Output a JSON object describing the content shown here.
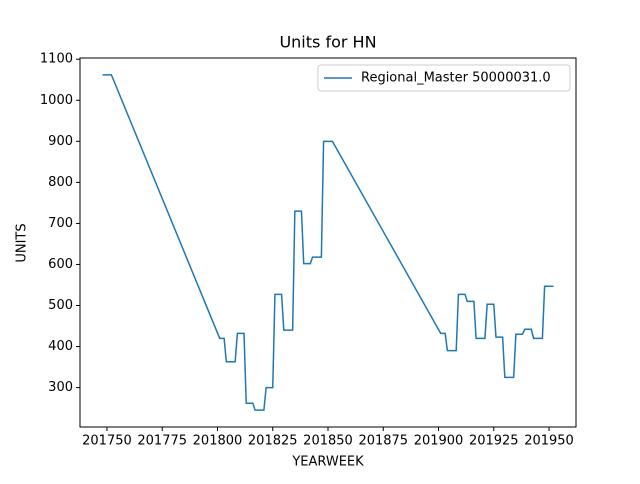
{
  "chart_data": {
    "type": "line",
    "title": "Units for HN",
    "x_label": "YEARWEEK",
    "y_label": "UNITS",
    "x": [
      201748,
      201749,
      201750,
      201751,
      201752,
      201801,
      201802,
      201803,
      201804,
      201805,
      201806,
      201807,
      201808,
      201809,
      201810,
      201811,
      201812,
      201813,
      201814,
      201815,
      201816,
      201817,
      201818,
      201819,
      201820,
      201821,
      201822,
      201823,
      201824,
      201825,
      201826,
      201827,
      201828,
      201829,
      201830,
      201831,
      201832,
      201833,
      201834,
      201835,
      201836,
      201837,
      201838,
      201839,
      201840,
      201841,
      201842,
      201843,
      201844,
      201845,
      201846,
      201847,
      201848,
      201849,
      201850,
      201851,
      201852,
      201901,
      201902,
      201903,
      201904,
      201905,
      201906,
      201907,
      201908,
      201909,
      201910,
      201911,
      201912,
      201913,
      201914,
      201915,
      201916,
      201917,
      201918,
      201919,
      201920,
      201921,
      201922,
      201923,
      201924,
      201925,
      201926,
      201927,
      201928,
      201929,
      201930,
      201931,
      201932,
      201933,
      201934,
      201935,
      201936,
      201937,
      201938,
      201939,
      201940,
      201941,
      201942,
      201943,
      201944,
      201945,
      201946,
      201947,
      201948,
      201949,
      201950,
      201951,
      201952
    ],
    "series": [
      {
        "name": "Regional_Master 50000031.0",
        "color": "#1f77b4",
        "values": [
          1062,
          1062,
          1062,
          1062,
          1062,
          420,
          420,
          420,
          363,
          363,
          363,
          363,
          363,
          432,
          432,
          432,
          432,
          262,
          262,
          262,
          262,
          245,
          245,
          245,
          245,
          245,
          300,
          300,
          300,
          300,
          527,
          527,
          527,
          527,
          440,
          440,
          440,
          440,
          440,
          730,
          730,
          730,
          730,
          602,
          602,
          602,
          602,
          618,
          618,
          618,
          618,
          618,
          900,
          900,
          900,
          900,
          900,
          432,
          432,
          432,
          390,
          390,
          390,
          390,
          390,
          527,
          527,
          527,
          527,
          510,
          510,
          510,
          510,
          420,
          420,
          420,
          420,
          420,
          503,
          503,
          503,
          503,
          423,
          423,
          423,
          423,
          325,
          325,
          325,
          325,
          325,
          430,
          430,
          430,
          430,
          442,
          442,
          442,
          442,
          420,
          420,
          420,
          420,
          420,
          547,
          547,
          547,
          547,
          547
        ]
      }
    ],
    "xlim": [
      201737.8,
      201962.2
    ],
    "ylim": [
      204,
      1103
    ],
    "xticks": [
      201750,
      201775,
      201800,
      201825,
      201850,
      201875,
      201900,
      201925,
      201950
    ],
    "yticks": [
      300,
      400,
      500,
      600,
      700,
      800,
      900,
      1000,
      1100
    ],
    "grid": false,
    "legend": "upper right"
  }
}
